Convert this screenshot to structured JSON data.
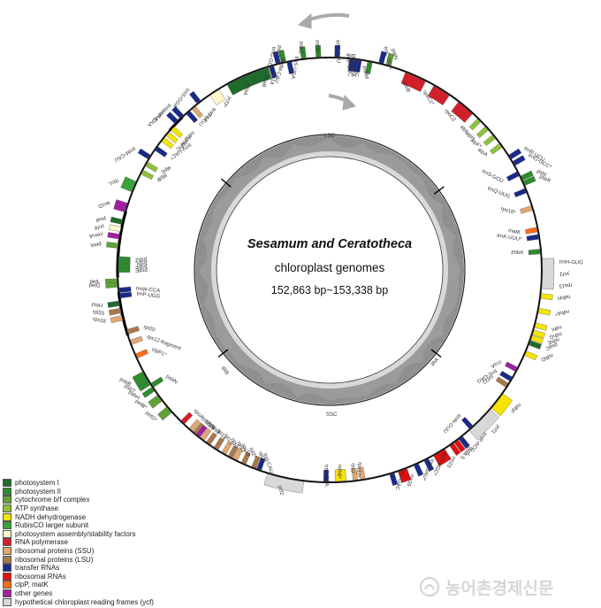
{
  "center": {
    "title": "Sesamum and Ceratotheca",
    "subtitle": "chloroplast genomes",
    "size_range": "152,863 bp~153,338 bp"
  },
  "regions": {
    "lsc": "LSC",
    "ssc": "SSC",
    "ira": "IRA",
    "irb": "IRB"
  },
  "categories": {
    "psI": {
      "label": "photosystem I",
      "color": "#1f6b2c"
    },
    "psII": {
      "label": "photosystem II",
      "color": "#2e8b2e"
    },
    "cyt": {
      "label": "cytochrome b/f complex",
      "color": "#5ea23a"
    },
    "atp": {
      "label": "ATP synthase",
      "color": "#8fc23c"
    },
    "ndh": {
      "label": "NADH dehydrogenase",
      "color": "#f5e400"
    },
    "rbc": {
      "label": "RubisCO larger subunit",
      "color": "#3aa33a"
    },
    "ycf_asm": {
      "label": "photosystem assembly/stability factors",
      "color": "#fdf6c6"
    },
    "rpo": {
      "label": "RNA polymerase",
      "color": "#d0202a"
    },
    "rps": {
      "label": "ribosomal proteins (SSU)",
      "color": "#e0a870"
    },
    "rpl": {
      "label": "ribosomal proteins (LSU)",
      "color": "#a87a4a"
    },
    "trn": {
      "label": "transfer RNAs",
      "color": "#1a2a8a"
    },
    "rrn": {
      "label": "ribosomal RNAs",
      "color": "#e01010"
    },
    "clp": {
      "label": "clpP, matK",
      "color": "#ff6b1a"
    },
    "oth": {
      "label": "other genes",
      "color": "#a020a0"
    },
    "ycf": {
      "label": "hypothetical chloroplast reading frames (ycf)",
      "color": "#d8d8d8"
    }
  },
  "legend_order": [
    "psI",
    "psII",
    "cyt",
    "atp",
    "ndh",
    "rbc",
    "ycf_asm",
    "rpo",
    "rps",
    "rpl",
    "trn",
    "rrn",
    "clp",
    "oth",
    "ycf"
  ],
  "genes": [
    {
      "name": "trnH-GUG",
      "angle": 2,
      "cat": "trn",
      "strand": "out"
    },
    {
      "name": "psbA",
      "angle": 5,
      "cat": "psII",
      "strand": "in"
    },
    {
      "name": "trnK-UUU*",
      "angle": 9,
      "cat": "trn",
      "strand": "in"
    },
    {
      "name": "matK",
      "angle": 11,
      "cat": "clp",
      "strand": "in"
    },
    {
      "name": "rps16*",
      "angle": 17,
      "cat": "rps",
      "strand": "in"
    },
    {
      "name": "trnQ-UUG",
      "angle": 22,
      "cat": "trn",
      "strand": "in"
    },
    {
      "name": "psbK",
      "angle": 24,
      "cat": "psII",
      "strand": "out"
    },
    {
      "name": "psbI",
      "angle": 25.5,
      "cat": "psII",
      "strand": "out"
    },
    {
      "name": "trnS-GCU",
      "angle": 27,
      "cat": "trn",
      "strand": "in"
    },
    {
      "name": "trnG-UCC*",
      "angle": 30,
      "cat": "trn",
      "strand": "out"
    },
    {
      "name": "trnR-UCU",
      "angle": 32,
      "cat": "trn",
      "strand": "out"
    },
    {
      "name": "atpA",
      "angle": 36,
      "cat": "atp",
      "strand": "in"
    },
    {
      "name": "atpF*",
      "angle": 39,
      "cat": "atp",
      "strand": "in"
    },
    {
      "name": "atpH",
      "angle": 42,
      "cat": "atp",
      "strand": "in"
    },
    {
      "name": "atpI",
      "angle": 45,
      "cat": "atp",
      "strand": "in"
    },
    {
      "name": "rpoC2",
      "angle": 50,
      "cat": "rpo",
      "strand": "in"
    },
    {
      "name": "rpoC1*",
      "angle": 58,
      "cat": "rpo",
      "strand": "in"
    },
    {
      "name": "rpoB",
      "angle": 66,
      "cat": "rpo",
      "strand": "in"
    },
    {
      "name": "petN",
      "angle": 74,
      "cat": "cyt",
      "strand": "out"
    },
    {
      "name": "trnC-GCA",
      "angle": 76,
      "cat": "trn",
      "strand": "out"
    },
    {
      "name": "psbM",
      "angle": 79,
      "cat": "psII",
      "strand": "in"
    },
    {
      "name": "trnD-GUC",
      "angle": 82,
      "cat": "trn",
      "strand": "in"
    },
    {
      "name": "trnY-GUA",
      "angle": 83,
      "cat": "trn",
      "strand": "in"
    },
    {
      "name": "trnE-UUC",
      "angle": 84,
      "cat": "trn",
      "strand": "in"
    },
    {
      "name": "trnT-GGU",
      "angle": 88,
      "cat": "trn",
      "strand": "out"
    },
    {
      "name": "psbD",
      "angle": 93,
      "cat": "psII",
      "strand": "out"
    },
    {
      "name": "psbC",
      "angle": 97,
      "cat": "psII",
      "strand": "out"
    },
    {
      "name": "trnS-UGA",
      "angle": 101,
      "cat": "trn",
      "strand": "in"
    },
    {
      "name": "psbZ",
      "angle": 102.5,
      "cat": "psII",
      "strand": "out"
    },
    {
      "name": "trnG-GCC",
      "angle": 104,
      "cat": "trn",
      "strand": "out"
    },
    {
      "name": "trnfM-CAU",
      "angle": 106,
      "cat": "trn",
      "strand": "in"
    },
    {
      "name": "rps14",
      "angle": 107.5,
      "cat": "rps",
      "strand": "in"
    },
    {
      "name": "psaB",
      "angle": 110,
      "cat": "psI",
      "strand": "in"
    },
    {
      "name": "psaA",
      "angle": 116,
      "cat": "psI",
      "strand": "in"
    },
    {
      "name": "ycf3*",
      "angle": 123,
      "cat": "ycf_asm",
      "strand": "in"
    },
    {
      "name": "trnS-GGA",
      "angle": 128,
      "cat": "trn",
      "strand": "out"
    },
    {
      "name": "rps4",
      "angle": 130,
      "cat": "rps",
      "strand": "in"
    },
    {
      "name": "trnT-UGU",
      "angle": 132,
      "cat": "trn",
      "strand": "in"
    },
    {
      "name": "trnL-UAA*",
      "angle": 134,
      "cat": "trn",
      "strand": "out"
    },
    {
      "name": "trnF-GAA",
      "angle": 136,
      "cat": "trn",
      "strand": "out"
    },
    {
      "name": "ndhJ",
      "angle": 138,
      "cat": "ndh",
      "strand": "in"
    },
    {
      "name": "ndhK",
      "angle": 140,
      "cat": "ndh",
      "strand": "in"
    },
    {
      "name": "ndhC",
      "angle": 142,
      "cat": "ndh",
      "strand": "in"
    },
    {
      "name": "trnV-UAC*",
      "angle": 145,
      "cat": "trn",
      "strand": "in"
    },
    {
      "name": "trnM-CAU",
      "angle": 148,
      "cat": "trn",
      "strand": "out"
    },
    {
      "name": "atpE",
      "angle": 150,
      "cat": "atp",
      "strand": "in"
    },
    {
      "name": "atpB",
      "angle": 152.5,
      "cat": "atp",
      "strand": "in"
    },
    {
      "name": "rbcL",
      "angle": 157,
      "cat": "rbc",
      "strand": "out"
    },
    {
      "name": "accD",
      "angle": 163,
      "cat": "oth",
      "strand": "out"
    },
    {
      "name": "psaI",
      "angle": 167,
      "cat": "psI",
      "strand": "out"
    },
    {
      "name": "ycf4",
      "angle": 169,
      "cat": "ycf_asm",
      "strand": "out"
    },
    {
      "name": "cemA",
      "angle": 171,
      "cat": "oth",
      "strand": "out"
    },
    {
      "name": "petA",
      "angle": 173.5,
      "cat": "cyt",
      "strand": "out"
    },
    {
      "name": "psbJ",
      "angle": 177,
      "cat": "psII",
      "strand": "in"
    },
    {
      "name": "psbL",
      "angle": 178,
      "cat": "psII",
      "strand": "in"
    },
    {
      "name": "psbF",
      "angle": 179,
      "cat": "psII",
      "strand": "in"
    },
    {
      "name": "psbE",
      "angle": 180,
      "cat": "psII",
      "strand": "in"
    },
    {
      "name": "petL",
      "angle": 183,
      "cat": "cyt",
      "strand": "out"
    },
    {
      "name": "petG",
      "angle": 184,
      "cat": "cyt",
      "strand": "out"
    },
    {
      "name": "trnW-CCA",
      "angle": 185.5,
      "cat": "trn",
      "strand": "in"
    },
    {
      "name": "trnP-UGG",
      "angle": 187,
      "cat": "trn",
      "strand": "in"
    },
    {
      "name": "psaJ",
      "angle": 189,
      "cat": "psI",
      "strand": "out"
    },
    {
      "name": "rpl33",
      "angle": 191,
      "cat": "rpl",
      "strand": "out"
    },
    {
      "name": "rps18",
      "angle": 193,
      "cat": "rps",
      "strand": "out"
    },
    {
      "name": "rpl20",
      "angle": 197,
      "cat": "rpl",
      "strand": "in"
    },
    {
      "name": "rps12-fragment",
      "angle": 200,
      "cat": "rps",
      "strand": "in"
    },
    {
      "name": "clpP1*",
      "angle": 204,
      "cat": "clp",
      "strand": "in"
    },
    {
      "name": "psbB",
      "angle": 210,
      "cat": "psII",
      "strand": "out"
    },
    {
      "name": "psbT",
      "angle": 212,
      "cat": "psII",
      "strand": "out"
    },
    {
      "name": "psbN",
      "angle": 213,
      "cat": "psII",
      "strand": "in"
    },
    {
      "name": "psbH",
      "angle": 214,
      "cat": "psII",
      "strand": "out"
    },
    {
      "name": "petB*",
      "angle": 217,
      "cat": "cyt",
      "strand": "out"
    },
    {
      "name": "petD*",
      "angle": 221,
      "cat": "cyt",
      "strand": "out"
    },
    {
      "name": "rpoA",
      "angle": 226,
      "cat": "rpo",
      "strand": "in"
    },
    {
      "name": "rps11",
      "angle": 229,
      "cat": "rps",
      "strand": "in"
    },
    {
      "name": "rpl36",
      "angle": 230.5,
      "cat": "rpl",
      "strand": "in"
    },
    {
      "name": "infA",
      "angle": 231.5,
      "cat": "oth",
      "strand": "in"
    },
    {
      "name": "rps8",
      "angle": 233,
      "cat": "rps",
      "strand": "in"
    },
    {
      "name": "rpl14",
      "angle": 235,
      "cat": "rpl",
      "strand": "in"
    },
    {
      "name": "rpl16*",
      "angle": 237.5,
      "cat": "rpl",
      "strand": "in"
    },
    {
      "name": "rps3",
      "angle": 240,
      "cat": "rps",
      "strand": "in"
    },
    {
      "name": "rpl22",
      "angle": 242,
      "cat": "rpl",
      "strand": "in"
    },
    {
      "name": "rps19",
      "angle": 243.5,
      "cat": "rps",
      "strand": "in"
    },
    {
      "name": "rpl2*",
      "angle": 246,
      "cat": "rpl",
      "strand": "in"
    },
    {
      "name": "rpl23",
      "angle": 249,
      "cat": "rpl",
      "strand": "in"
    },
    {
      "name": "trnI-CAU",
      "angle": 250.5,
      "cat": "trn",
      "strand": "in"
    },
    {
      "name": "ycf2",
      "angle": 258,
      "cat": "ycf",
      "strand": "out"
    },
    {
      "name": "trnL-CAA",
      "angle": 269,
      "cat": "trn",
      "strand": "in"
    },
    {
      "name": "ndhB*",
      "angle": 273,
      "cat": "ndh",
      "strand": "in"
    },
    {
      "name": "rps7",
      "angle": 277,
      "cat": "rps",
      "strand": "in"
    },
    {
      "name": "rps12*",
      "angle": 279,
      "cat": "rps",
      "strand": "in"
    },
    {
      "name": "trnV-GAC",
      "angle": 287,
      "cat": "trn",
      "strand": "out"
    },
    {
      "name": "rrn16",
      "angle": 290,
      "cat": "rrn",
      "strand": "out"
    },
    {
      "name": "trnI-GAU*",
      "angle": 294,
      "cat": "trn",
      "strand": "out"
    },
    {
      "name": "trnA-UGC*",
      "angle": 297,
      "cat": "trn",
      "strand": "out"
    },
    {
      "name": "rrn23",
      "angle": 301,
      "cat": "rrn",
      "strand": "out"
    },
    {
      "name": "rrn4.5",
      "angle": 305,
      "cat": "rrn",
      "strand": "out"
    },
    {
      "name": "rrn5",
      "angle": 306.5,
      "cat": "rrn",
      "strand": "out"
    },
    {
      "name": "trnR-ACG",
      "angle": 308,
      "cat": "trn",
      "strand": "out"
    },
    {
      "name": "trnN-GUU",
      "angle": 312,
      "cat": "trn",
      "strand": "in"
    },
    {
      "name": "ycf1",
      "angle": 315,
      "cat": "ycf",
      "strand": "out"
    },
    {
      "name": "ndhF",
      "angle": 322,
      "cat": "ndh",
      "strand": "out"
    },
    {
      "name": "rpl32",
      "angle": 327,
      "cat": "rpl",
      "strand": "in"
    },
    {
      "name": "trnL-UAG",
      "angle": 329,
      "cat": "trn",
      "strand": "in"
    },
    {
      "name": "ccsA",
      "angle": 332,
      "cat": "oth",
      "strand": "in"
    },
    {
      "name": "ndhD",
      "angle": 337,
      "cat": "ndh",
      "strand": "out"
    },
    {
      "name": "psaC",
      "angle": 340,
      "cat": "psI",
      "strand": "out"
    },
    {
      "name": "ndhE",
      "angle": 341.5,
      "cat": "ndh",
      "strand": "out"
    },
    {
      "name": "ndhG",
      "angle": 343,
      "cat": "ndh",
      "strand": "out"
    },
    {
      "name": "ndhI",
      "angle": 345,
      "cat": "ndh",
      "strand": "out"
    },
    {
      "name": "ndhA*",
      "angle": 349,
      "cat": "ndh",
      "strand": "out"
    },
    {
      "name": "ndhH",
      "angle": 353,
      "cat": "ndh",
      "strand": "out"
    },
    {
      "name": "rps15",
      "angle": 356,
      "cat": "rps",
      "strand": "out"
    },
    {
      "name": "ycf1",
      "angle": 359,
      "cat": "ycf",
      "strand": "out"
    }
  ]
}
